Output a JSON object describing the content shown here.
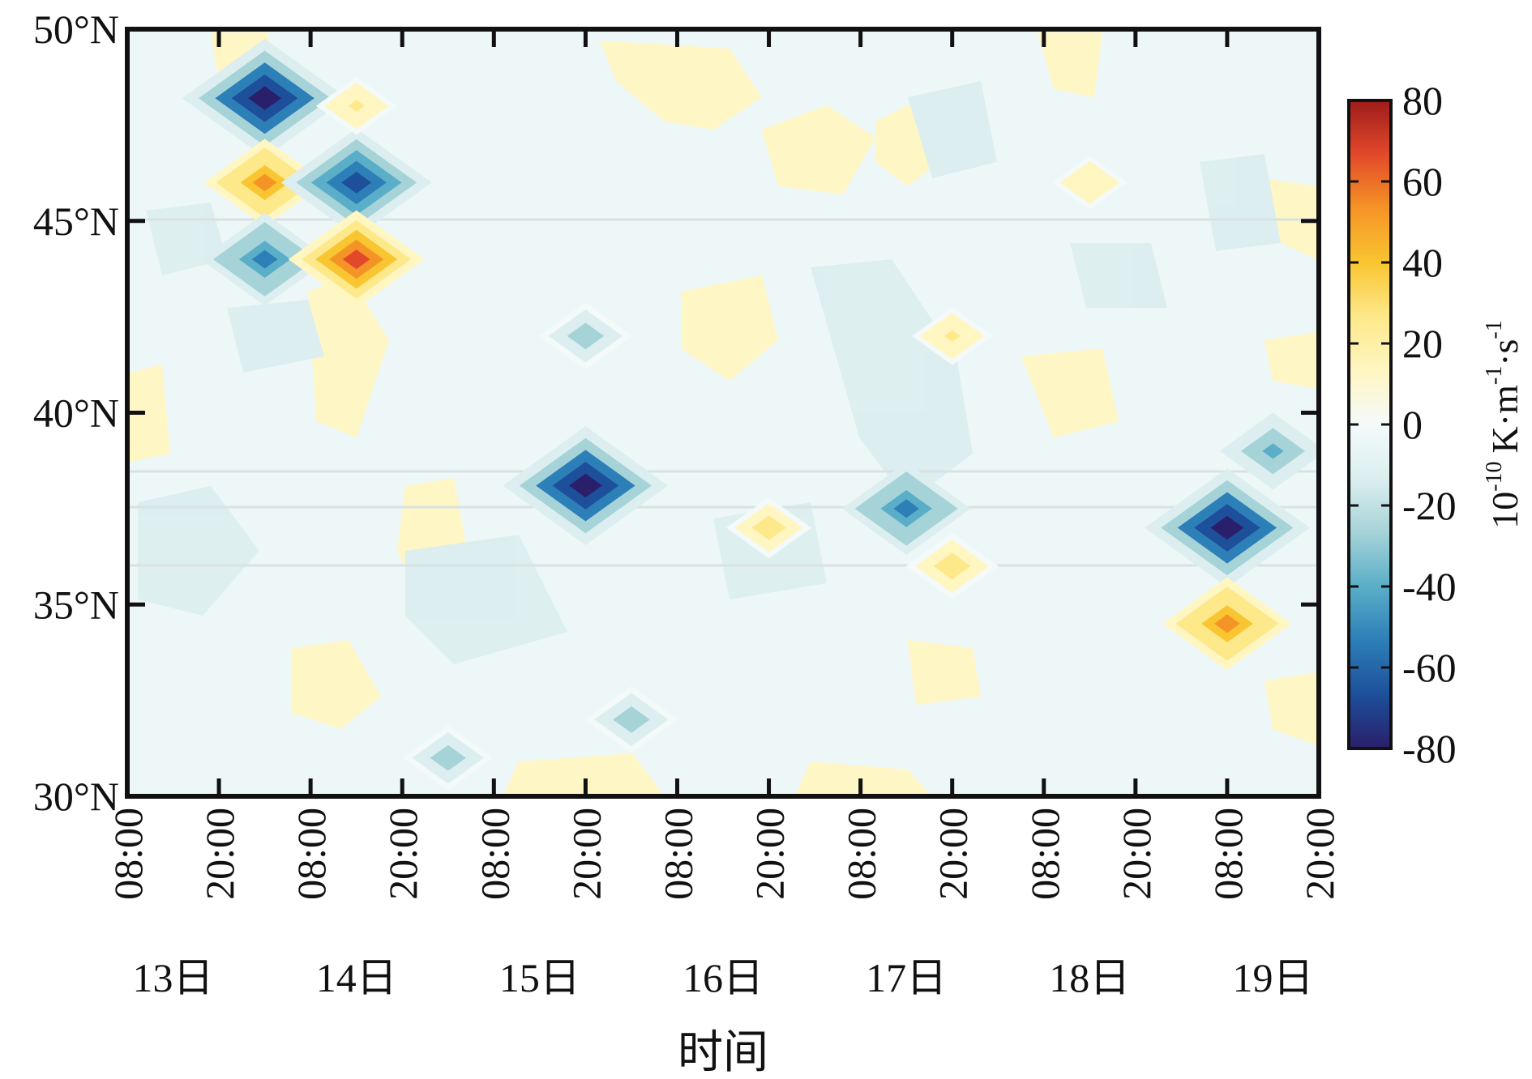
{
  "chart_data": {
    "type": "heatmap",
    "title": "",
    "xlabel": "时间",
    "ylabel": "",
    "colorbar_label": {
      "base": "10",
      "exp": "-10",
      "units": "K·m",
      "exp2": "-1",
      "sep": "·s",
      "exp3": "-1"
    },
    "x_ticks": [
      "08:00",
      "20:00",
      "08:00",
      "20:00",
      "08:00",
      "20:00",
      "08:00",
      "20:00",
      "08:00",
      "20:00",
      "08:00",
      "20:00",
      "08:00",
      "20:00"
    ],
    "day_labels": [
      "13日",
      "14日",
      "15日",
      "16日",
      "17日",
      "18日",
      "19日"
    ],
    "y_ticks": [
      "30°N",
      "35°N",
      "40°N",
      "45°N",
      "50°N"
    ],
    "y_values": [
      30,
      35,
      40,
      45,
      50
    ],
    "ylim": [
      30,
      50
    ],
    "x_range_hours": [
      0,
      156
    ],
    "colorbar": {
      "ticks": [
        "80",
        "60",
        "40",
        "20",
        "0",
        "-20",
        "-40",
        "-60",
        "-80"
      ],
      "range": [
        -80,
        80
      ],
      "colors": [
        "#2a1f6b",
        "#1d4f9a",
        "#2d7fb8",
        "#5aaec8",
        "#a6d3d8",
        "#dceeef",
        "#f4fafa",
        "#fff6c2",
        "#fde88a",
        "#f9c531",
        "#f59426",
        "#e2492a",
        "#9e1b1a"
      ]
    },
    "features": [
      {
        "t": 18,
        "lat": 48.2,
        "value": -80
      },
      {
        "t": 18,
        "lat": 46.0,
        "value": 50
      },
      {
        "t": 18,
        "lat": 44.0,
        "value": -55
      },
      {
        "t": 30,
        "lat": 46.0,
        "value": -70
      },
      {
        "t": 30,
        "lat": 44.0,
        "value": 60
      },
      {
        "t": 30,
        "lat": 48.0,
        "value": 22
      },
      {
        "t": 60,
        "lat": 38.1,
        "value": -80
      },
      {
        "t": 60,
        "lat": 42.0,
        "value": -30
      },
      {
        "t": 66,
        "lat": 32.0,
        "value": -30
      },
      {
        "t": 102,
        "lat": 37.5,
        "value": -55
      },
      {
        "t": 108,
        "lat": 36.0,
        "value": 30
      },
      {
        "t": 144,
        "lat": 37.0,
        "value": -80
      },
      {
        "t": 144,
        "lat": 34.5,
        "value": 55
      },
      {
        "t": 150,
        "lat": 39.0,
        "value": -40
      },
      {
        "t": 42,
        "lat": 31.0,
        "value": -28
      },
      {
        "t": 84,
        "lat": 37.0,
        "value": 25
      },
      {
        "t": 108,
        "lat": 42.0,
        "value": 22
      },
      {
        "t": 126,
        "lat": 46.0,
        "value": 18
      }
    ]
  }
}
